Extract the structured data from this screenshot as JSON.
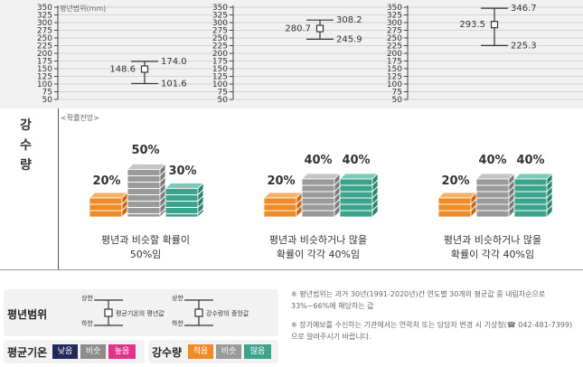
{
  "chart_data": [
    {
      "type": "errorbar",
      "ylabel": "평년범위(mm)",
      "yticks": [
        50,
        75,
        100,
        125,
        150,
        175,
        200,
        225,
        250,
        275,
        300,
        325,
        350
      ],
      "ylim": [
        50,
        350
      ],
      "mean": 148.6,
      "upper": 174.0,
      "lower": 101.6
    },
    {
      "type": "errorbar",
      "ylabel": "",
      "yticks": [
        50,
        75,
        100,
        125,
        150,
        175,
        200,
        225,
        250,
        275,
        300,
        325,
        350
      ],
      "ylim": [
        50,
        350
      ],
      "mean": 280.7,
      "upper": 308.2,
      "lower": 245.9
    },
    {
      "type": "errorbar",
      "ylabel": "",
      "yticks": [
        50,
        75,
        100,
        125,
        150,
        175,
        200,
        225,
        250,
        275,
        300,
        325,
        350
      ],
      "ylim": [
        50,
        350
      ],
      "mean": 293.5,
      "upper": 346.7,
      "lower": 225.3
    }
  ],
  "side_label": [
    "강",
    "수",
    "량"
  ],
  "prob_label": "<확률전망>",
  "probabilities": [
    {
      "below": "20%",
      "normal": "50%",
      "above": "30%",
      "below_v": 20,
      "normal_v": 50,
      "above_v": 30,
      "desc": [
        "평년과 비슷할 확률이",
        "50%임"
      ]
    },
    {
      "below": "20%",
      "normal": "40%",
      "above": "40%",
      "below_v": 20,
      "normal_v": 40,
      "above_v": 40,
      "desc": [
        "평년과 비슷하거나 많을",
        "확률이 각각 40%임"
      ]
    },
    {
      "below": "20%",
      "normal": "40%",
      "above": "40%",
      "below_v": 20,
      "normal_v": 40,
      "above_v": 40,
      "desc": [
        "평년과 비슷하거나 많을",
        "확률이 각각 40%임"
      ]
    }
  ],
  "legend": {
    "range_title": "평년범위",
    "upper": "상한",
    "lower": "하한",
    "mean_temp": "평균기온의 평년값",
    "median_precip": "강수량의 중앙값",
    "temp_title": "평균기온",
    "temp_chips": [
      "낮음",
      "비슷",
      "높음"
    ],
    "precip_title": "강수량",
    "precip_chips": [
      "적음",
      "비슷",
      "많음"
    ]
  },
  "colors": {
    "low_temp": "#1f2a5a",
    "similar": "#8c8c8c",
    "high_temp": "#e0338a",
    "orange": "#f08a24",
    "gray": "#9a9a9a",
    "green": "#3aa58c"
  },
  "footnotes": [
    "※ 평년범위는 과거 30년(1991-2020년)간 연도별 30개의 평균값 중 내림차순으로 33%~66%에 해당하는 값",
    "※ 장기예보를 수신하는 기관에서는 연락처 또는 담당자 변경 시 기상청(☎ 042-481-7399) 으로 알려주시기 바랍니다."
  ]
}
